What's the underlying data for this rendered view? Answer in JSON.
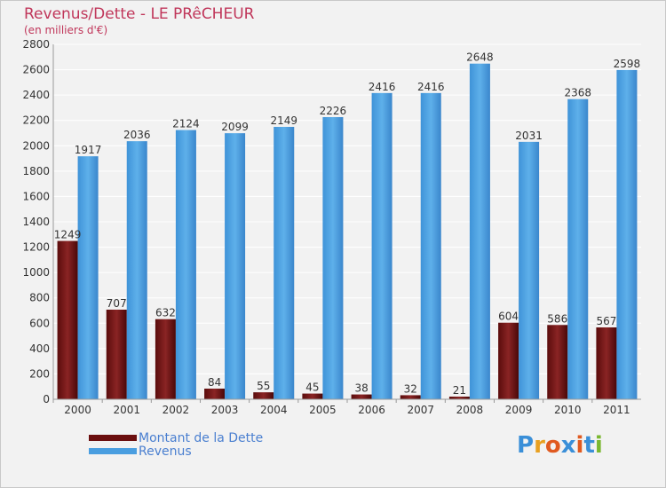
{
  "header": {
    "title": "Revenus/Dette - LE PRêCHEUR",
    "subtitle": "(en milliers d'€)"
  },
  "colors": {
    "debt": "#7a1a1a",
    "revenue": "#4a9ee0",
    "title": "#c0365a",
    "legend_text": "#4a7fd0"
  },
  "legend": {
    "items": [
      {
        "label": "Montant de la Dette",
        "color": "#6b0f0f"
      },
      {
        "label": "Revenus",
        "color": "#4a9ee0"
      }
    ]
  },
  "logo": {
    "text": "Proxiti",
    "letter_colors": [
      "#3a8fd8",
      "#e8a020",
      "#e05a20",
      "#3a8fd8",
      "#e05a20",
      "#3a8fd8",
      "#7ab830"
    ]
  },
  "chart_data": {
    "type": "bar",
    "title": "Revenus/Dette - LE PRêCHEUR",
    "subtitle": "(en milliers d'€)",
    "xlabel": "",
    "ylabel": "",
    "ylim": [
      0,
      2800
    ],
    "yticks": [
      0,
      200,
      400,
      600,
      800,
      1000,
      1200,
      1400,
      1600,
      1800,
      2000,
      2200,
      2400,
      2600,
      2800
    ],
    "grid": true,
    "legend_position": "bottom-left",
    "categories": [
      "2000",
      "2001",
      "2002",
      "2003",
      "2004",
      "2005",
      "2006",
      "2007",
      "2008",
      "2009",
      "2010",
      "2011"
    ],
    "series": [
      {
        "name": "Montant de la Dette",
        "values": [
          1249,
          707,
          632,
          84,
          55,
          45,
          38,
          32,
          21,
          604,
          586,
          567
        ]
      },
      {
        "name": "Revenus",
        "values": [
          1917,
          2036,
          2124,
          2099,
          2149,
          2226,
          2416,
          2416,
          2648,
          2031,
          2368,
          2598
        ]
      }
    ]
  }
}
